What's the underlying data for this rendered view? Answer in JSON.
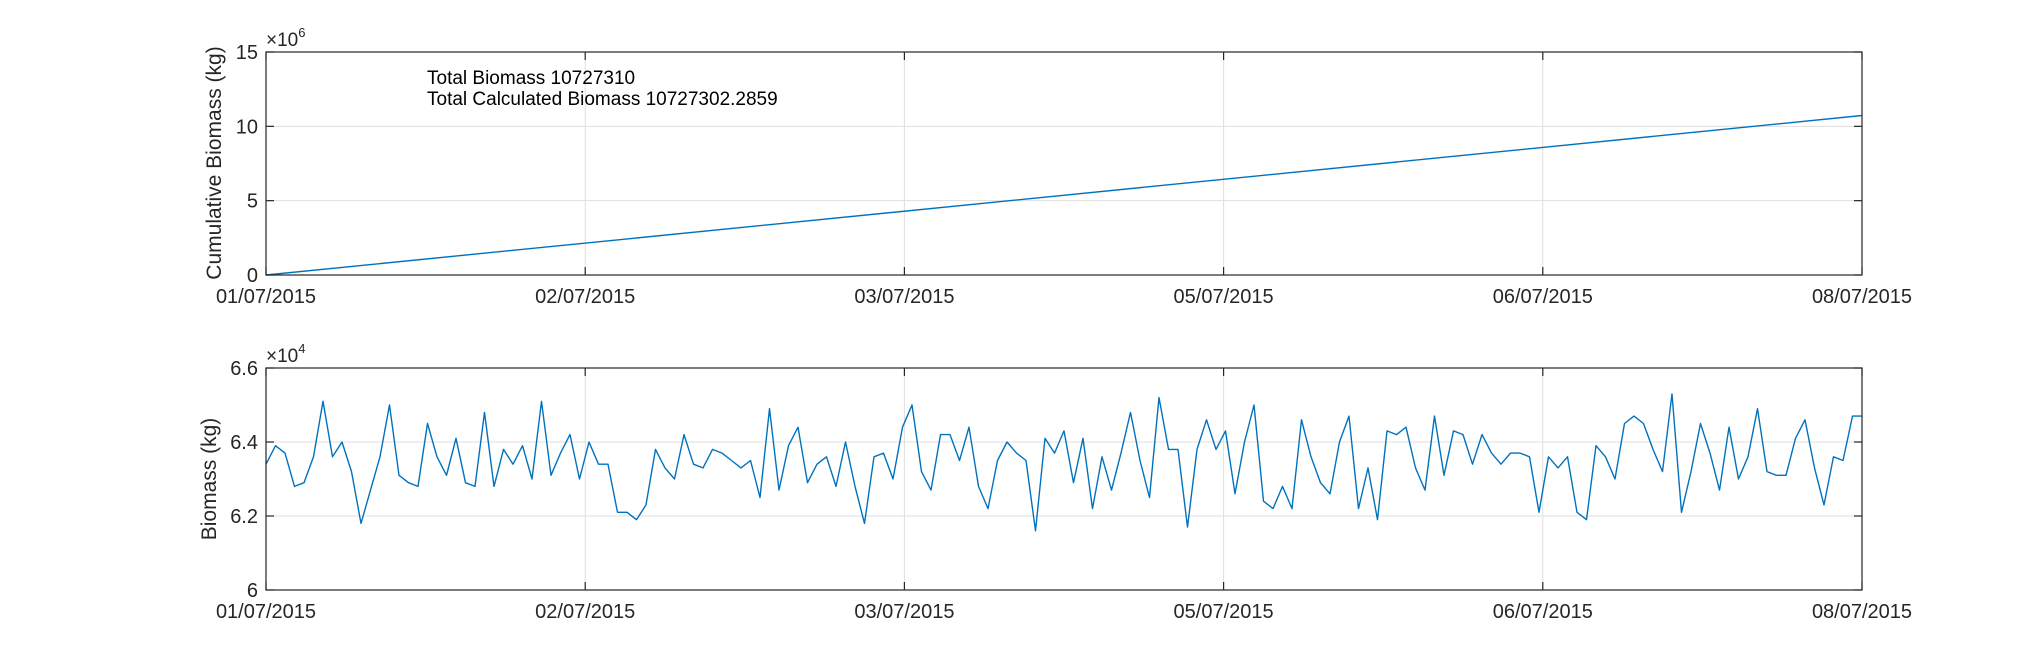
{
  "chart_data": [
    {
      "type": "line",
      "ylabel": "Cumulative Biomass (kg)",
      "exponent_label": {
        "base": "×10",
        "power": "6"
      },
      "ylim": [
        0,
        15
      ],
      "yticks": [
        0,
        5,
        10,
        15
      ],
      "ytick_labels": [
        "0",
        "5",
        "10",
        "15"
      ],
      "xlim": [
        "01/07/2015",
        "08/07/2015"
      ],
      "xtick_labels": [
        "01/07/2015",
        "02/07/2015",
        "03/07/2015",
        "05/07/2015",
        "06/07/2015",
        "08/07/2015"
      ],
      "grid": true,
      "annotations": [
        "Total Biomass 10727310",
        "Total Calculated Biomass 10727302.2859"
      ],
      "series": [
        {
          "x": [
            0,
            1
          ],
          "values": [
            0,
            10.727302
          ]
        }
      ]
    },
    {
      "type": "line",
      "ylabel": "Biomass (kg)",
      "exponent_label": {
        "base": "×10",
        "power": "4"
      },
      "ylim": [
        6.0,
        6.6
      ],
      "yticks": [
        6.0,
        6.2,
        6.4,
        6.6
      ],
      "ytick_labels": [
        "6",
        "6.2",
        "6.4",
        "6.6"
      ],
      "xlim": [
        "01/07/2015",
        "08/07/2015"
      ],
      "xtick_labels": [
        "01/07/2015",
        "02/07/2015",
        "03/07/2015",
        "05/07/2015",
        "06/07/2015",
        "08/07/2015"
      ],
      "grid": true,
      "series": [
        {
          "values": [
            6.34,
            6.39,
            6.37,
            6.28,
            6.29,
            6.36,
            6.51,
            6.36,
            6.4,
            6.32,
            6.18,
            6.27,
            6.36,
            6.5,
            6.31,
            6.29,
            6.28,
            6.45,
            6.36,
            6.31,
            6.41,
            6.29,
            6.28,
            6.48,
            6.28,
            6.38,
            6.34,
            6.39,
            6.3,
            6.51,
            6.31,
            6.37,
            6.42,
            6.3,
            6.4,
            6.34,
            6.34,
            6.21,
            6.21,
            6.19,
            6.23,
            6.38,
            6.33,
            6.3,
            6.42,
            6.34,
            6.33,
            6.38,
            6.37,
            6.35,
            6.33,
            6.35,
            6.25,
            6.49,
            6.27,
            6.39,
            6.44,
            6.29,
            6.34,
            6.36,
            6.28,
            6.4,
            6.28,
            6.18,
            6.36,
            6.37,
            6.3,
            6.44,
            6.5,
            6.32,
            6.27,
            6.42,
            6.42,
            6.35,
            6.44,
            6.28,
            6.22,
            6.35,
            6.4,
            6.37,
            6.35,
            6.16,
            6.41,
            6.37,
            6.43,
            6.29,
            6.41,
            6.22,
            6.36,
            6.27,
            6.37,
            6.48,
            6.35,
            6.25,
            6.52,
            6.38,
            6.38,
            6.17,
            6.38,
            6.46,
            6.38,
            6.43,
            6.26,
            6.4,
            6.5,
            6.24,
            6.22,
            6.28,
            6.22,
            6.46,
            6.36,
            6.29,
            6.26,
            6.4,
            6.47,
            6.22,
            6.33,
            6.19,
            6.43,
            6.42,
            6.44,
            6.33,
            6.27,
            6.47,
            6.31,
            6.43,
            6.42,
            6.34,
            6.42,
            6.37,
            6.34,
            6.37,
            6.37,
            6.36,
            6.21,
            6.36,
            6.33,
            6.36,
            6.21,
            6.19,
            6.39,
            6.36,
            6.3,
            6.45,
            6.47,
            6.45,
            6.38,
            6.32,
            6.53,
            6.21,
            6.32,
            6.45,
            6.37,
            6.27,
            6.44,
            6.3,
            6.36,
            6.49,
            6.32,
            6.31,
            6.31,
            6.41,
            6.46,
            6.33,
            6.23,
            6.36,
            6.35,
            6.47,
            6.47
          ]
        }
      ]
    }
  ],
  "colors": {
    "series": "#0072bd",
    "grid": "#dfdfdf",
    "axis": "#262626"
  }
}
